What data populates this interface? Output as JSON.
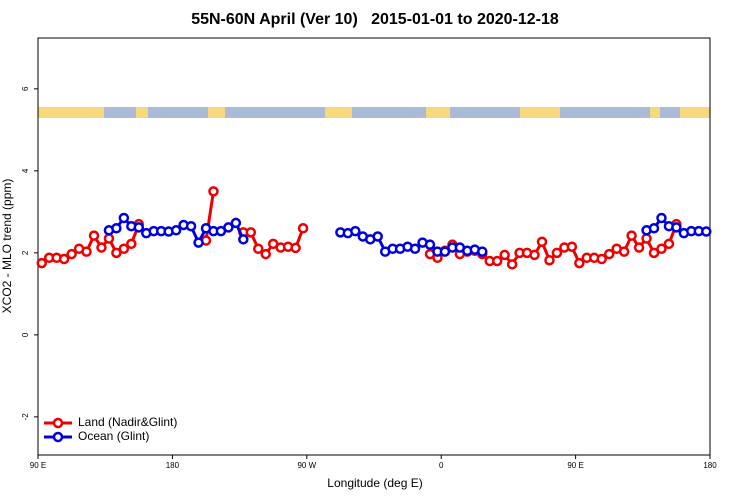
{
  "chart_data": {
    "type": "line",
    "title": "55N-60N April (Ver 10)   2015-01-01 to 2020-12-18",
    "x_label": "Longitude (deg E)",
    "y_label": "XCO2 - MLO trend (ppm)",
    "xlim": [
      90,
      540
    ],
    "ylim": [
      -2.93,
      7.24
    ],
    "xticks": [
      {
        "value": 90,
        "label": "90 E"
      },
      180,
      {
        "value": 270,
        "label": "90 W"
      },
      {
        "value": 360,
        "label": "0"
      },
      {
        "value": 450,
        "label": "90 E"
      },
      {
        "value": 540,
        "label": "180"
      }
    ],
    "yticks": [
      -2,
      0,
      2,
      4,
      6
    ],
    "grid": false,
    "legend": "bottom-left",
    "x": [
      92.5,
      97.5,
      102.5,
      107.5,
      112.5,
      117.5,
      122.5,
      127.5,
      132.5,
      137.5,
      142.5,
      147.5,
      152.5,
      157.5,
      162.5,
      167.5,
      172.5,
      177.5,
      182.5,
      187.5,
      192.5,
      197.5,
      202.5,
      207.5,
      212.5,
      217.5,
      222.5,
      227.5,
      232.5,
      237.5,
      242.5,
      247.5,
      252.5,
      257.5,
      262.5,
      267.5,
      272.5,
      277.5,
      282.5,
      287.5,
      292.5,
      297.5,
      302.5,
      307.5,
      312.5,
      317.5,
      322.5,
      327.5,
      332.5,
      337.5,
      342.5,
      347.5,
      352.5,
      357.5,
      362.5,
      367.5,
      372.5,
      377.5,
      382.5,
      387.5,
      392.5,
      397.5,
      402.5,
      407.5,
      412.5,
      417.5,
      422.5,
      427.5,
      432.5,
      437.5,
      442.5,
      447.5,
      452.5,
      457.5,
      462.5,
      467.5,
      472.5,
      477.5,
      482.5,
      487.5,
      492.5,
      497.5,
      502.5,
      507.5,
      512.5,
      517.5,
      522.5,
      527.5,
      532.5,
      537.5
    ],
    "series": [
      {
        "name": "Land (Nadir&Glint)",
        "color": "#ee0000",
        "values": [
          1.75,
          1.88,
          1.88,
          1.85,
          1.97,
          2.1,
          2.03,
          2.42,
          2.13,
          2.35,
          2.0,
          2.1,
          2.22,
          2.7,
          null,
          null,
          null,
          null,
          null,
          null,
          null,
          null,
          2.3,
          3.5,
          null,
          null,
          null,
          2.5,
          2.5,
          2.1,
          1.97,
          2.22,
          2.13,
          2.15,
          2.12,
          2.6,
          null,
          null,
          null,
          null,
          null,
          null,
          null,
          null,
          null,
          null,
          null,
          null,
          null,
          null,
          null,
          null,
          1.97,
          1.88,
          2.05,
          2.2,
          1.97,
          2.03,
          2.05,
          1.97,
          1.8,
          1.8,
          1.95,
          1.72,
          2.0,
          2.0,
          1.95,
          2.27,
          1.82,
          2.0,
          2.13,
          2.15,
          1.75,
          1.88,
          1.88,
          1.85,
          1.97,
          2.1,
          2.03,
          2.42,
          2.13,
          2.35,
          2.0,
          2.1,
          2.22,
          2.7,
          null,
          null,
          null,
          null
        ]
      },
      {
        "name": "Ocean (Glint)",
        "color": "#0000dd",
        "values": [
          null,
          null,
          null,
          null,
          null,
          null,
          null,
          null,
          null,
          2.55,
          2.6,
          2.85,
          2.65,
          2.62,
          2.48,
          2.53,
          2.53,
          2.52,
          2.55,
          2.68,
          2.65,
          2.25,
          2.6,
          2.53,
          2.53,
          2.62,
          2.73,
          2.33,
          null,
          null,
          null,
          null,
          null,
          null,
          null,
          null,
          null,
          null,
          null,
          null,
          2.5,
          2.48,
          2.53,
          2.4,
          2.33,
          2.4,
          2.03,
          2.1,
          2.1,
          2.15,
          2.1,
          2.25,
          2.2,
          2.03,
          2.03,
          2.13,
          2.13,
          2.05,
          2.08,
          2.03,
          null,
          null,
          null,
          null,
          null,
          null,
          null,
          null,
          null,
          null,
          null,
          null,
          null,
          null,
          null,
          null,
          null,
          null,
          null,
          null,
          null,
          2.55,
          2.6,
          2.85,
          2.65,
          2.62,
          2.48,
          2.53,
          2.53,
          2.52
        ]
      }
    ]
  }
}
